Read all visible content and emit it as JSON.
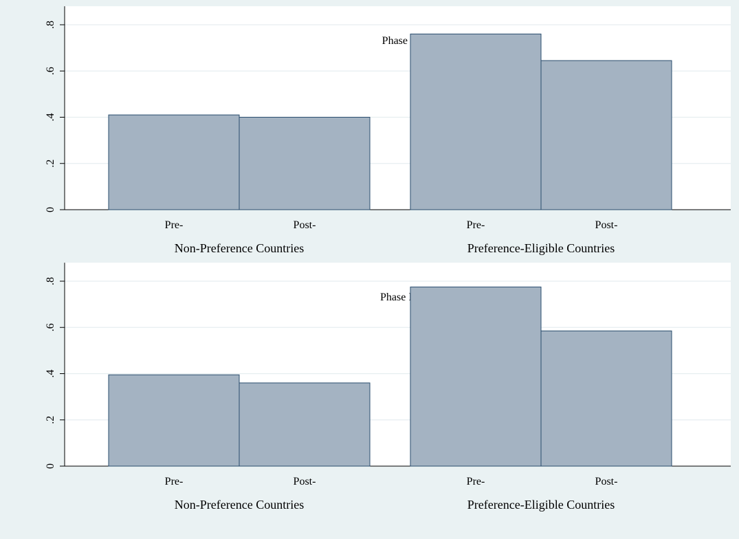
{
  "chart_data": [
    {
      "type": "bar",
      "title": "Phase I",
      "groups": [
        "Non-Preference Countries",
        "Preference-Eligible Countries"
      ],
      "categories": [
        "Pre-",
        "Post-"
      ],
      "series": [
        {
          "group": "Non-Preference Countries",
          "values": [
            0.41,
            0.4
          ]
        },
        {
          "group": "Preference-Eligible Countries",
          "values": [
            0.76,
            0.645
          ]
        }
      ],
      "yticks": [
        "0",
        ".2",
        ".4",
        ".6",
        ".8"
      ],
      "ylim": [
        0,
        0.8
      ],
      "grid": true,
      "bar_color": "#a4b3c2",
      "bar_edge_color": "#2a4d6e"
    },
    {
      "type": "bar",
      "title": "Phase II",
      "groups": [
        "Non-Preference Countries",
        "Preference-Eligible Countries"
      ],
      "categories": [
        "Pre-",
        "Post-"
      ],
      "series": [
        {
          "group": "Non-Preference Countries",
          "values": [
            0.395,
            0.36
          ]
        },
        {
          "group": "Preference-Eligible Countries",
          "values": [
            0.775,
            0.585
          ]
        }
      ],
      "yticks": [
        "0",
        ".2",
        ".4",
        ".6",
        ".8"
      ],
      "ylim": [
        0,
        0.8
      ],
      "grid": true,
      "bar_color": "#a4b3c2",
      "bar_edge_color": "#2a4d6e"
    }
  ]
}
